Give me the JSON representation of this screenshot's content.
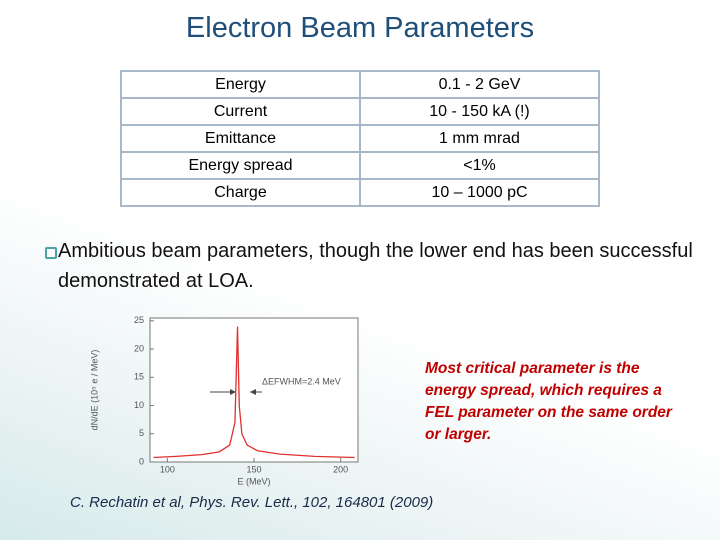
{
  "title": "Electron Beam Parameters",
  "table": {
    "rows": [
      [
        "Energy",
        "0.1 - 2 GeV"
      ],
      [
        "Current",
        "10 - 150 kA (!)"
      ],
      [
        "Emittance",
        "1 mm mrad"
      ],
      [
        "Energy spread",
        "<1%"
      ],
      [
        "Charge",
        "10 – 1000 pC"
      ]
    ]
  },
  "bullet": "Ambitious beam parameters, though the lower end has been successful demonstrated at LOA.",
  "note": "Most critical parameter is the energy spread, which requires a FEL parameter on the same order or larger.",
  "citation": "C. Rechatin et al, Phys. Rev. Lett., 102, 164801 (2009)",
  "chart_data": {
    "type": "line",
    "x": [
      92,
      105,
      120,
      130,
      136,
      139,
      140.5,
      141.5,
      143,
      146,
      152,
      165,
      185,
      208
    ],
    "values": [
      0.8,
      1.0,
      1.3,
      1.8,
      3,
      7,
      24,
      10,
      5,
      3,
      2,
      1.4,
      1.0,
      0.8
    ],
    "color": "#e03030",
    "xlim": [
      90,
      210
    ],
    "ylim": [
      0,
      25.5
    ],
    "xticks": [
      100,
      150,
      200
    ],
    "yticks": [
      0,
      5,
      10,
      15,
      20,
      25
    ],
    "xlabel": "E (MeV)",
    "ylabel": "dN/dE (10⁵ e / MeV)",
    "annotation": "ΔEFWHM=2.4 MeV"
  }
}
